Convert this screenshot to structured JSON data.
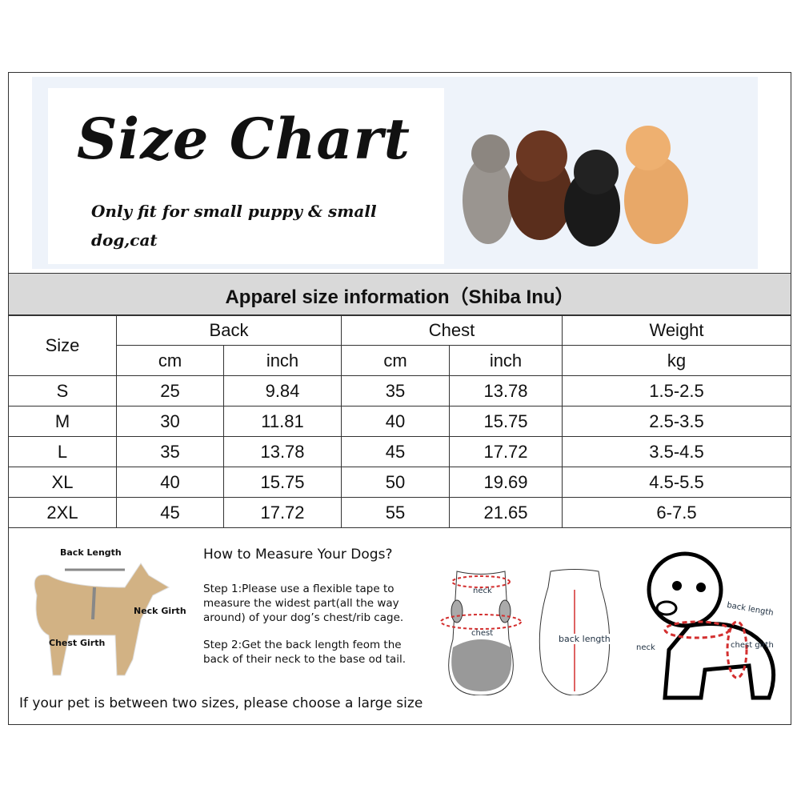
{
  "header": {
    "title": "Size Chart",
    "subtitle": "Only fit for  small puppy & small dog,cat"
  },
  "band_title": "Apparel  size  information（Shiba Inu）",
  "table": {
    "size_header": "Size",
    "groups": [
      "Back",
      "Chest",
      "Weight"
    ],
    "units": [
      "cm",
      "inch",
      "cm",
      "inch",
      "kg"
    ],
    "rows": [
      [
        "S",
        "25",
        "9.84",
        "35",
        "13.78",
        "1.5-2.5"
      ],
      [
        "M",
        "30",
        "11.81",
        "40",
        "15.75",
        "2.5-3.5"
      ],
      [
        "L",
        "35",
        "13.78",
        "45",
        "17.72",
        "3.5-4.5"
      ],
      [
        "XL",
        "40",
        "15.75",
        "50",
        "19.69",
        "4.5-5.5"
      ],
      [
        "2XL",
        "45",
        "17.72",
        "55",
        "21.65",
        "6-7.5"
      ]
    ]
  },
  "measure": {
    "heading": "How to Measure Your Dogs?",
    "step1": "Step 1:Please use a flexible tape to measure the widest part(all the way around) of your dog’s chest/rib cage.",
    "step2": "Step 2:Get the back length feom the back of their neck to the base od tail.",
    "note": "If your pet is between two sizes, please choose a large size",
    "dog_labels": {
      "back": "Back Length",
      "neck": "Neck Girth",
      "chest": "Chest Girth"
    },
    "garment_labels": {
      "neck": "neck",
      "chest": "chest",
      "back": "back length"
    },
    "puppy_labels": {
      "back": "back length",
      "neck": "neck",
      "chest": "chest girth"
    }
  },
  "colors": {
    "band": "#d9d9d9",
    "measure_line": "#d32f2f"
  }
}
